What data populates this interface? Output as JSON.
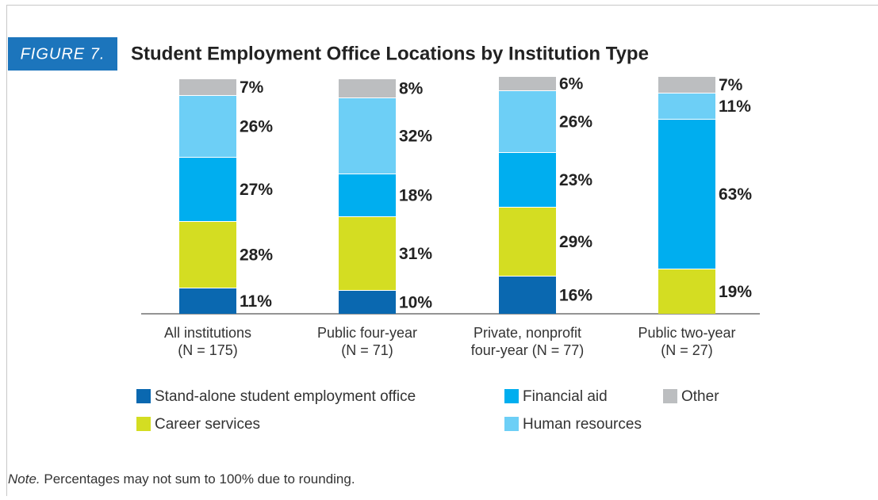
{
  "chart_data": {
    "type": "stacked_bar",
    "figure_label": "FIGURE 7.",
    "title": "Student Employment Office Locations by Institution Type",
    "categories": [
      [
        "All institutions",
        "(N = 175)"
      ],
      [
        "Public four-year",
        "(N = 71)"
      ],
      [
        "Private, nonprofit",
        "four-year (N = 77)"
      ],
      [
        "Public two-year",
        "(N = 27)"
      ]
    ],
    "series": [
      {
        "name": "Stand-alone student employment office",
        "color": "#0a68b0",
        "values": [
          11,
          10,
          16,
          null
        ],
        "value_labels": [
          "11%",
          "10%",
          "16%",
          null
        ]
      },
      {
        "name": "Career services",
        "color": "#d4dd22",
        "values": [
          28,
          31,
          29,
          19
        ],
        "value_labels": [
          "28%",
          "31%",
          "29%",
          "19%"
        ]
      },
      {
        "name": "Financial aid",
        "color": "#00aeef",
        "values": [
          27,
          18,
          23,
          63
        ],
        "value_labels": [
          "27%",
          "18%",
          "23%",
          "63%"
        ]
      },
      {
        "name": "Human resources",
        "color": "#6dcff6",
        "values": [
          26,
          32,
          26,
          11
        ],
        "value_labels": [
          "26%",
          "32%",
          "26%",
          "11%"
        ]
      },
      {
        "name": "Other",
        "color": "#bcbec0",
        "values": [
          7,
          8,
          6,
          7
        ],
        "value_labels": [
          "7%",
          "8%",
          "6%",
          "7%"
        ]
      }
    ],
    "note_lead": "Note.",
    "note": "Percentages may not sum to 100% due to rounding."
  }
}
